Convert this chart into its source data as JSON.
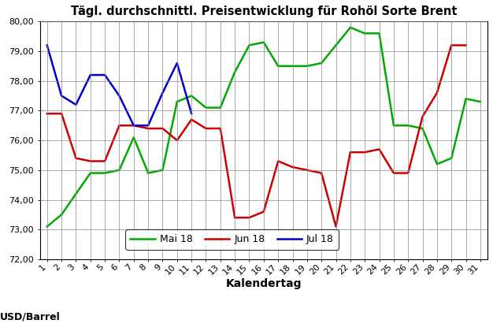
{
  "title": "Tägl. durchschnittl. Preisentwicklung für Rohöl Sorte Brent",
  "xlabel": "Kalendertag",
  "ylabel": "USD/Barrel",
  "ylim": [
    72.0,
    80.0
  ],
  "yticks": [
    72.0,
    73.0,
    74.0,
    75.0,
    76.0,
    77.0,
    78.0,
    79.0,
    80.0
  ],
  "xlim": [
    1,
    31
  ],
  "mai18": {
    "label": "Mai 18",
    "color": "#00aa00",
    "x": [
      1,
      2,
      3,
      4,
      5,
      6,
      7,
      8,
      9,
      10,
      11,
      12,
      13,
      14,
      15,
      16,
      17,
      18,
      19,
      20,
      21,
      22,
      23,
      24,
      25,
      26,
      27,
      28,
      29,
      30,
      31
    ],
    "y": [
      73.1,
      73.5,
      74.2,
      74.9,
      74.9,
      75.0,
      76.1,
      74.9,
      75.0,
      77.3,
      77.5,
      77.1,
      77.1,
      78.3,
      79.2,
      79.3,
      78.5,
      78.5,
      78.5,
      78.6,
      79.2,
      79.8,
      79.6,
      79.6,
      76.5,
      76.5,
      76.4,
      75.2,
      75.4,
      77.4,
      77.3
    ]
  },
  "jun18": {
    "label": "Jun 18",
    "color": "#cc0000",
    "x": [
      1,
      2,
      3,
      4,
      5,
      6,
      7,
      8,
      9,
      10,
      11,
      12,
      13,
      14,
      15,
      16,
      17,
      18,
      19,
      20,
      21,
      22,
      23,
      24,
      25,
      26,
      27,
      28,
      29,
      30
    ],
    "y": [
      76.9,
      76.9,
      75.4,
      75.3,
      75.3,
      76.5,
      76.5,
      76.4,
      76.4,
      76.0,
      76.7,
      76.4,
      76.4,
      73.4,
      73.4,
      73.6,
      75.3,
      75.1,
      75.0,
      74.9,
      73.1,
      75.6,
      75.6,
      75.7,
      74.9,
      74.9,
      76.8,
      77.6,
      79.2,
      79.2
    ]
  },
  "jul18": {
    "label": "Jul 18",
    "color": "#0000cc",
    "x": [
      1,
      2,
      3,
      4,
      5,
      6,
      7,
      8,
      9,
      10,
      11
    ],
    "y": [
      79.2,
      77.5,
      77.2,
      78.2,
      78.2,
      77.5,
      76.5,
      76.5,
      77.6,
      78.6,
      76.9
    ]
  },
  "line_width": 1.8,
  "background_color": "#ffffff",
  "grid_color": "#888888",
  "title_fontsize": 10.5,
  "axis_fontsize": 9,
  "tick_fontsize": 8,
  "legend_fontsize": 9
}
